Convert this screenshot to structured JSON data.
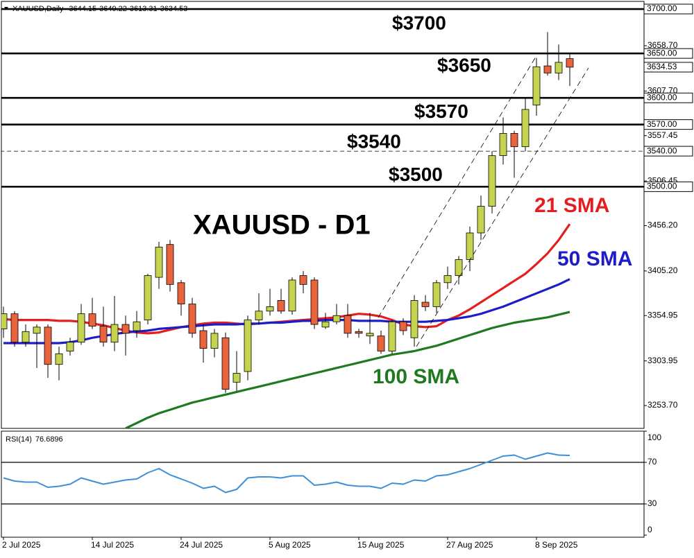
{
  "chart_data": {
    "type": "candlestick",
    "symbol": "XAUUSD,Daily",
    "title": "XAUUSD - D1",
    "categories": [
      "2 Jul 2025",
      null,
      null,
      null,
      null,
      null,
      null,
      null,
      "14 Jul 2025",
      null,
      null,
      null,
      null,
      null,
      null,
      null,
      "24 Jul 2025",
      null,
      null,
      null,
      null,
      null,
      null,
      null,
      "5 Aug 2025",
      null,
      null,
      null,
      null,
      null,
      null,
      null,
      "15 Aug 2025",
      null,
      null,
      null,
      null,
      null,
      null,
      null,
      "27 Aug 2025",
      null,
      null,
      null,
      null,
      null,
      null,
      null,
      "8 Sep 2025",
      null,
      null,
      null
    ],
    "open": [
      3340,
      3357,
      3325,
      3335,
      3342,
      3300,
      3315,
      3325,
      3357,
      3343,
      3325,
      3345,
      3338,
      3350,
      3398,
      3435,
      3392,
      3368,
      3338,
      3318,
      3330,
      3280,
      3292,
      3350,
      3360,
      3372,
      3360,
      3400,
      3395,
      3342,
      3348,
      3355,
      3337,
      3332,
      3332,
      3315,
      3348,
      3330,
      3370,
      3365,
      3392,
      3400,
      3418,
      3448,
      3478,
      3535,
      3560,
      3545,
      3592,
      3636,
      3628,
      3644.15
    ],
    "high": [
      3365,
      3360,
      3345,
      3345,
      3345,
      3320,
      3330,
      3368,
      3375,
      3365,
      3377,
      3355,
      3360,
      3402,
      3438,
      3440,
      3395,
      3375,
      3345,
      3340,
      3336,
      3315,
      3355,
      3380,
      3385,
      3385,
      3398,
      3405,
      3398,
      3358,
      3368,
      3368,
      3340,
      3358,
      3338,
      3350,
      3352,
      3378,
      3378,
      3395,
      3410,
      3422,
      3455,
      3490,
      3540,
      3578,
      3563,
      3600,
      3645,
      3674,
      3660,
      3649.22
    ],
    "low": [
      3330,
      3320,
      3320,
      3296,
      3285,
      3282,
      3310,
      3322,
      3340,
      3320,
      3315,
      3310,
      3330,
      3345,
      3385,
      3382,
      3355,
      3330,
      3302,
      3308,
      3268,
      3270,
      3282,
      3345,
      3355,
      3357,
      3356,
      3380,
      3340,
      3340,
      3345,
      3330,
      3330,
      3323,
      3312,
      3312,
      3333,
      3320,
      3360,
      3358,
      3385,
      3390,
      3405,
      3440,
      3470,
      3525,
      3510,
      3540,
      3580,
      3625,
      3620,
      3613.31
    ],
    "close": [
      3357,
      3325,
      3337,
      3342,
      3300,
      3312,
      3325,
      3357,
      3343,
      3325,
      3345,
      3335,
      3348,
      3400,
      3432,
      3390,
      3368,
      3335,
      3318,
      3335,
      3272,
      3290,
      3350,
      3360,
      3365,
      3360,
      3395,
      3390,
      3345,
      3348,
      3355,
      3335,
      3335,
      3335,
      3315,
      3348,
      3338,
      3372,
      3365,
      3392,
      3400,
      3418,
      3448,
      3478,
      3535,
      3560,
      3545,
      3587,
      3635,
      3628,
      3640,
      3634.53
    ],
    "up_color": "#c5d24f",
    "down_color": "#e8643e",
    "ylim": [
      3228,
      3708.6
    ],
    "yticks": [
      {
        "value": 3658.7,
        "label": "3658.70"
      },
      {
        "value": 3607.7,
        "label": "3607.70"
      },
      {
        "value": 3557.45,
        "label": "3557.45"
      },
      {
        "value": 3506.45,
        "label": "3506.45"
      },
      {
        "value": 3456.2,
        "label": "3456.20"
      },
      {
        "value": 3405.2,
        "label": "3405.20"
      },
      {
        "value": 3354.95,
        "label": "3354.95"
      },
      {
        "value": 3303.95,
        "label": "3303.95"
      },
      {
        "value": 3253.7,
        "label": "3253.70"
      }
    ],
    "levels": [
      {
        "value": 3700,
        "label": "3700.00",
        "annotation": "$3700",
        "style": "solid"
      },
      {
        "value": 3650,
        "label": "3650.00",
        "annotation": "$3650",
        "style": "solid"
      },
      {
        "value": 3600,
        "label": "3600.00",
        "style": "solid"
      },
      {
        "value": 3570,
        "label": "3570.00",
        "annotation": "$3570",
        "style": "solid"
      },
      {
        "value": 3540,
        "label": "3540.00",
        "annotation": "$3540",
        "style": "dashed"
      },
      {
        "value": 3500,
        "label": "3500.00",
        "annotation": "$3500",
        "style": "solid"
      }
    ],
    "series": [
      {
        "name": "21 SMA",
        "color": "#e41e1e",
        "values": [
          3351,
          3350,
          3350,
          3350,
          3350,
          3349,
          3349,
          3348,
          3346,
          3344,
          3341,
          3338,
          3336,
          3335,
          3336,
          3339,
          3342,
          3344,
          3346,
          3347,
          3347,
          3346,
          3345,
          3346,
          3347,
          3348,
          3349,
          3350,
          3351,
          3352,
          3353,
          3355,
          3357,
          3356,
          3354,
          3350,
          3345,
          3343,
          3342,
          3343,
          3350,
          3355,
          3362,
          3370,
          3378,
          3386,
          3394,
          3402,
          3413,
          3425,
          3440,
          3458
        ]
      },
      {
        "name": "50 SMA",
        "color": "#1c1cc8",
        "values": [
          3324,
          3324,
          3324,
          3324,
          3324,
          3324,
          3325,
          3327,
          3330,
          3332,
          3334,
          3336,
          3337,
          3338,
          3340,
          3341,
          3342,
          3343,
          3344,
          3345,
          3345,
          3345,
          3346,
          3346,
          3347,
          3347,
          3348,
          3349,
          3349,
          3350,
          3350,
          3350,
          3349,
          3349,
          3349,
          3348,
          3348,
          3348,
          3348,
          3349,
          3350,
          3352,
          3354,
          3357,
          3361,
          3365,
          3370,
          3375,
          3380,
          3385,
          3390,
          3396
        ]
      },
      {
        "name": "100 SMA",
        "color": "#1e7a1e",
        "values": [
          null,
          null,
          null,
          null,
          null,
          null,
          null,
          null,
          null,
          null,
          null,
          3228,
          3234,
          3240,
          3245,
          3249,
          3253,
          3257,
          3260,
          3263,
          3266,
          3269,
          3272,
          3275,
          3278,
          3281,
          3284,
          3287,
          3290,
          3293,
          3296,
          3299,
          3302,
          3305,
          3308,
          3311,
          3313,
          3315,
          3318,
          3321,
          3325,
          3329,
          3333,
          3337,
          3341,
          3344,
          3347,
          3349,
          3351,
          3353,
          3356,
          3359
        ]
      }
    ],
    "rsi": {
      "title": "RSI(14)",
      "color": "#3d8fd8",
      "values": [
        55,
        52,
        51,
        51,
        46,
        47,
        49,
        55,
        52,
        49,
        51,
        53,
        54,
        60,
        64,
        58,
        54,
        50,
        45,
        47,
        41,
        44,
        55,
        56,
        56,
        55,
        57,
        57,
        48,
        49,
        51,
        48,
        47,
        47,
        45,
        50,
        49,
        53,
        52,
        57,
        58,
        61,
        64,
        68,
        72,
        76,
        77,
        73,
        76,
        79,
        77,
        76.6896
      ],
      "ylim": [
        -2,
        100
      ],
      "yticks": [
        0,
        30,
        70,
        100
      ],
      "levels": [
        30,
        70
      ]
    }
  }
}
